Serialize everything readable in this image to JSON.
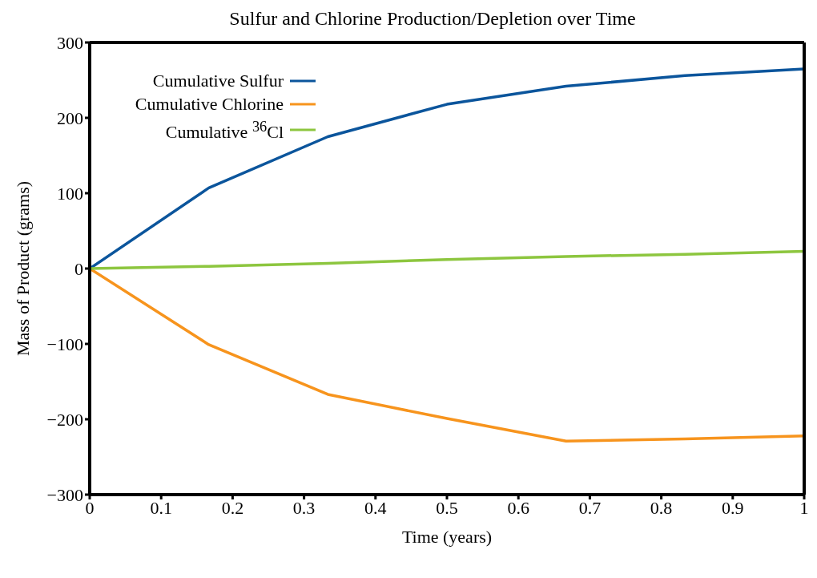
{
  "chart_data": {
    "type": "line",
    "title": "Sulfur and Chlorine Production/Depletion over Time",
    "xlabel": "Time (years)",
    "ylabel": "Mass of Product (grams)",
    "x": [
      0,
      0.1667,
      0.3333,
      0.5,
      0.6667,
      0.8333,
      1
    ],
    "series": [
      {
        "name": "Cumulative Sulfur",
        "color": "#0b559c",
        "values": [
          0,
          107,
          175,
          218,
          242,
          256,
          265
        ]
      },
      {
        "name": "Cumulative Chlorine",
        "color": "#f7941d",
        "values": [
          0,
          -101,
          -167,
          -199,
          -229,
          -226,
          -222
        ]
      },
      {
        "name": "Cumulative $^{36}$Cl",
        "color": "#8dc63f",
        "values": [
          0,
          3,
          7,
          12,
          16,
          19,
          23
        ]
      }
    ],
    "xlim": [
      0,
      1
    ],
    "xticks": [
      0,
      0.1,
      0.2,
      0.3,
      0.4,
      0.5,
      0.6,
      0.7,
      0.8,
      0.9,
      1
    ],
    "ylim": [
      -300,
      300
    ],
    "yticks": [
      -300,
      -200,
      -100,
      0,
      100,
      200,
      300
    ],
    "grid": false,
    "legend": "top left",
    "marker": "none",
    "line_style": "solid"
  }
}
